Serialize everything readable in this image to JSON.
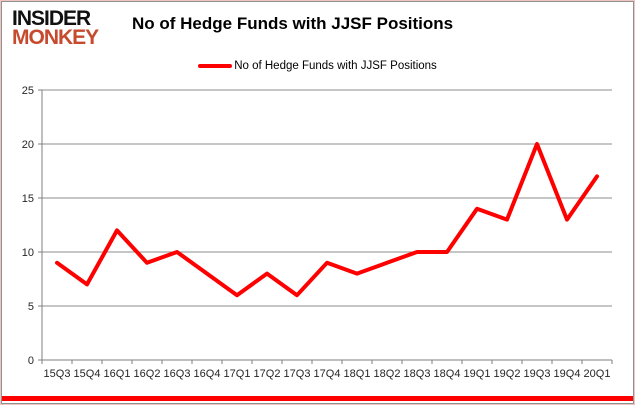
{
  "logo": {
    "line1": "INSIDER",
    "line2": "MONKEY"
  },
  "header": {
    "title": "No of Hedge Funds with JJSF Positions"
  },
  "legend": {
    "label": "No of Hedge Funds with JJSF Positions"
  },
  "colors": {
    "series": "#ff0000",
    "logo_black": "#111111",
    "logo_red": "#c64a2e",
    "axis": "#7f7f7f",
    "gridline": "#8c8c8c",
    "label_text": "#262626",
    "bottom_bar": "#ff0000"
  },
  "chart_data": {
    "type": "line",
    "title": "No of Hedge Funds with JJSF Positions",
    "categories": [
      "15Q3",
      "15Q4",
      "16Q1",
      "16Q2",
      "16Q3",
      "16Q4",
      "17Q1",
      "17Q2",
      "17Q3",
      "17Q4",
      "18Q1",
      "18Q2",
      "18Q3",
      "18Q4",
      "19Q1",
      "19Q2",
      "19Q3",
      "19Q4",
      "20Q1"
    ],
    "series": [
      {
        "name": "No of Hedge Funds with JJSF Positions",
        "values": [
          9,
          7,
          12,
          9,
          10,
          8,
          6,
          8,
          6,
          9,
          8,
          9,
          10,
          10,
          14,
          13,
          20,
          13,
          17
        ],
        "color": "#ff0000"
      }
    ],
    "xlabel": "",
    "ylabel": "",
    "ylim": [
      0,
      25
    ],
    "yticks": [
      0,
      5,
      10,
      15,
      20,
      25
    ],
    "grid": true,
    "legend_position": "top-center"
  }
}
